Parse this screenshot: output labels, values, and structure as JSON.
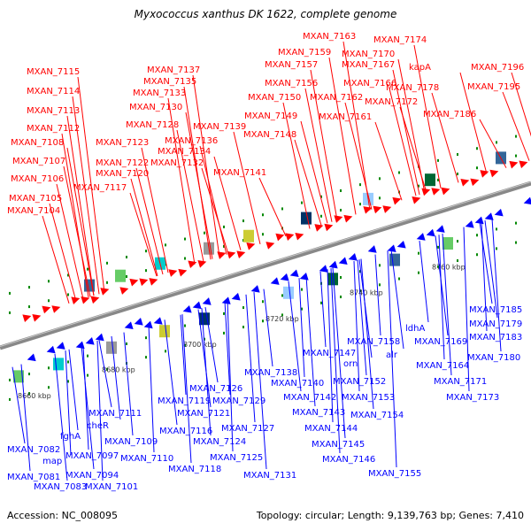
{
  "title": "Myxococcus xanthus DK 1622, complete genome",
  "accession": "Accession: NC_008095",
  "summary": "Topology: circular; Length: 9,139,763 bp; Genes: 7,410",
  "colors": {
    "forward": "#ff0000",
    "reverse": "#0000ff",
    "backbone": "#888888",
    "tick": "#008800"
  },
  "kbp_labels": [
    "8660 kbp",
    "8680 kbp",
    "8700 kbp",
    "8720 kbp",
    "8740 kbp",
    "8760 kbp"
  ],
  "forward_labels": [
    "MXAN_7104",
    "MXAN_7105",
    "MXAN_7106",
    "MXAN_7107",
    "MXAN_7108",
    "MXAN_7112",
    "MXAN_7113",
    "MXAN_7114",
    "MXAN_7115",
    "MXAN_7117",
    "MXAN_7120",
    "MXAN_7122",
    "MXAN_7123",
    "MXAN_7128",
    "MXAN_7130",
    "MXAN_7133",
    "MXAN_7135",
    "MXAN_7137",
    "MXAN_7132",
    "MXAN_7134",
    "MXAN_7136",
    "MXAN_7139",
    "MXAN_7141",
    "MXAN_7148",
    "MXAN_7149",
    "MXAN_7150",
    "MXAN_7156",
    "MXAN_7157",
    "MXAN_7159",
    "MXAN_7161",
    "MXAN_7162",
    "MXAN_7163",
    "MXAN_7166",
    "MXAN_7167",
    "MXAN_7170",
    "MXAN_7172",
    "MXAN_7174",
    "MXAN_7178",
    "kapA",
    "MXAN_7186",
    "MXAN_7195",
    "MXAN_7196"
  ],
  "reverse_labels": [
    "MXAN_7082",
    "MXAN_7081",
    "map",
    "MXAN_7083",
    "fghA",
    "MXAN_7097",
    "MXAN_7094",
    "cheR",
    "MXAN_7101",
    "MXAN_7111",
    "MXAN_7109",
    "MXAN_7110",
    "MXAN_7116",
    "MXAN_7118",
    "MXAN_7119",
    "MXAN_7121",
    "MXAN_7124",
    "MXAN_7125",
    "MXAN_7126",
    "MXAN_7127",
    "MXAN_7129",
    "MXAN_7131",
    "MXAN_7138",
    "MXAN_7140",
    "MXAN_7142",
    "MXAN_7143",
    "MXAN_7144",
    "MXAN_7145",
    "MXAN_7146",
    "MXAN_7147",
    "orn",
    "MXAN_7152",
    "MXAN_7153",
    "MXAN_7154",
    "MXAN_7155",
    "MXAN_7158",
    "alr",
    "ldhA",
    "MXAN_7164",
    "MXAN_7169",
    "MXAN_7171",
    "MXAN_7173",
    "MXAN_7179",
    "MXAN_7180",
    "MXAN_7183",
    "MXAN_7185"
  ]
}
